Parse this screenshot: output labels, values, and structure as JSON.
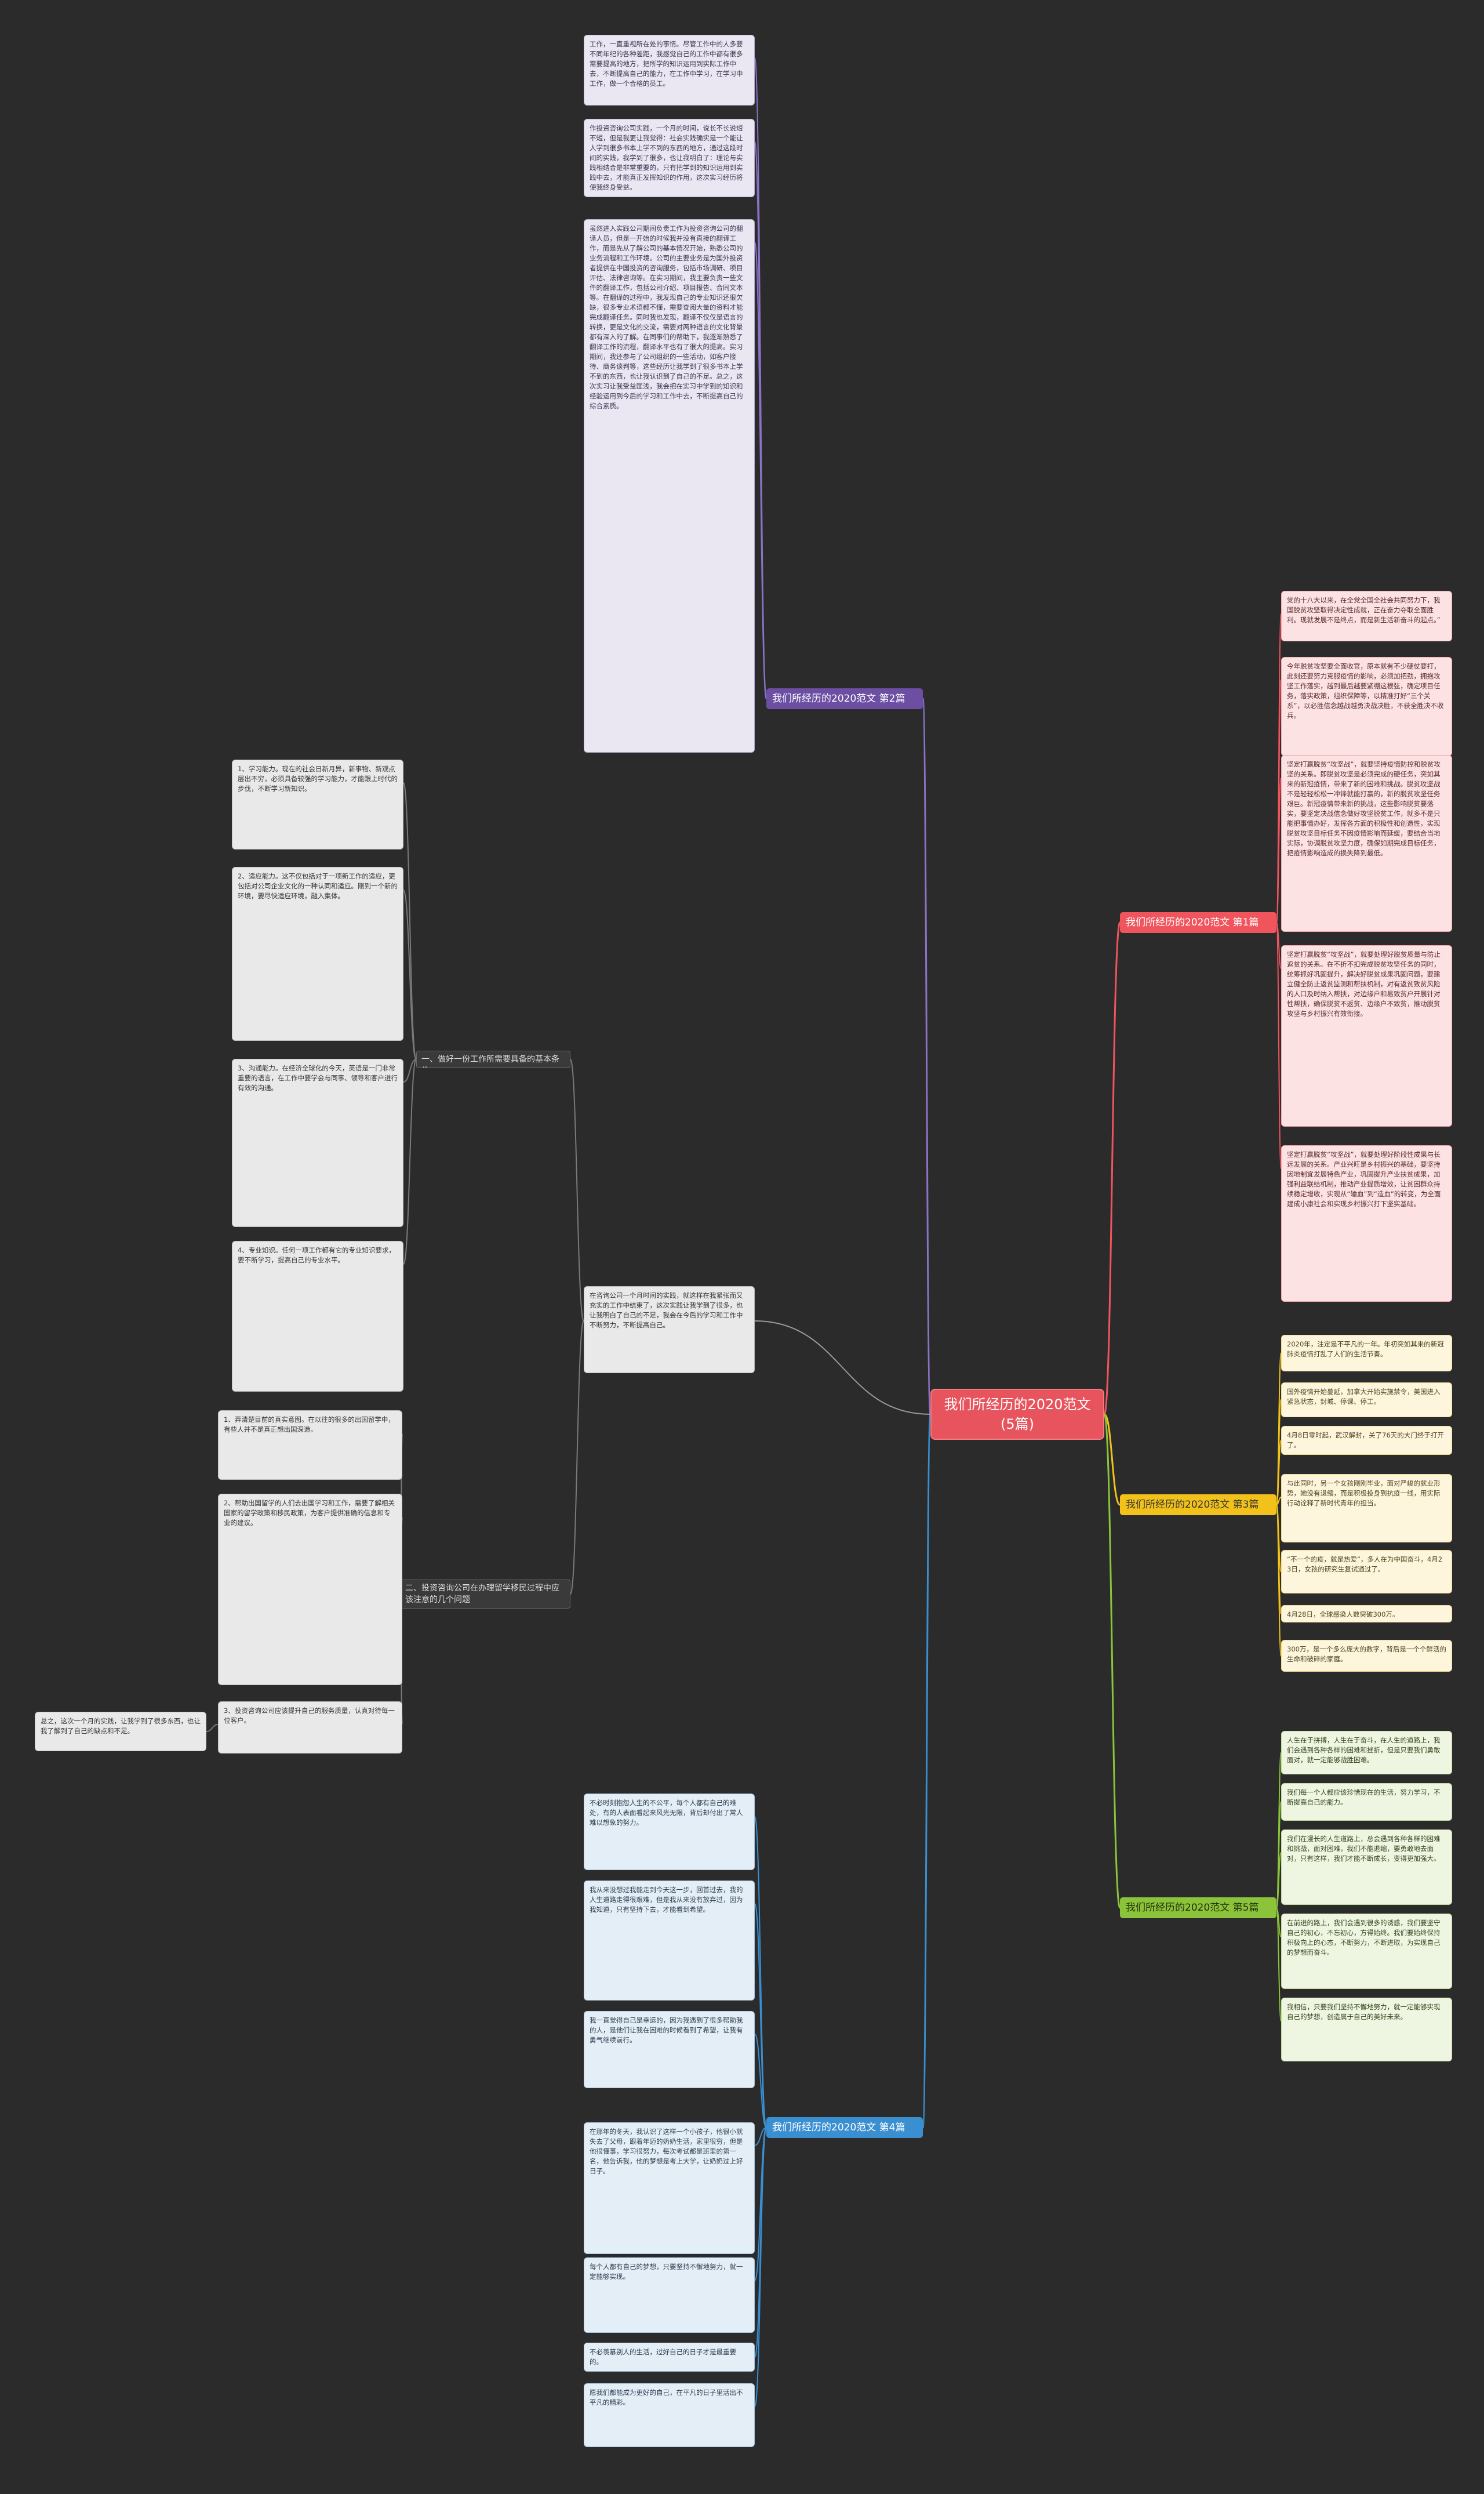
{
  "root": "我们所经历的2020范文(5篇)",
  "branches": [
    {
      "label": "我们所经历的2020范文 第1篇",
      "leaves": [
        "党的十八大以来，在全党全国全社会共同努力下，我国脱贫攻坚取得决定性成就，正在奋力夺取全面胜利。现就发展不是终点，而是新生活新奋斗的起点。”",
        "今年脱贫攻坚要全面收官，原本就有不少硬仗要打，此刻还要努力克服疫情的影响，必须加把劲，拥抱攻坚工作落实，越到最后越要紧绷这根弦，确定项目任务，落实政策，组织保障等，以精准打好“三个关系”，以必胜信念越战越勇决战决胜，不获全胜决不收兵。",
        "坚定打赢脱贫“攻坚战”，就要坚持疫情防控和脱贫攻坚的关系。即脱贫攻坚是必须完成的硬任务，突如其来的新冠疫情，带来了新的困难和挑战。脱贫攻坚战不是轻轻松松一冲锋就能打赢的，新的脱贫攻坚任务艰巨。新冠疫情带来新的挑战，这些影响脱贫要落实，要坚定决战信念做好攻坚脱贫工作，就多不是只能把事情办好，发挥各方面的积极性和创造性，实现脱贫攻坚目标任务不因疫情影响而延缓，要结合当地实际，协调脱贫攻坚力度，确保如期完成目标任务，把疫情影响造成的损失降到最低。",
        "坚定打赢脱贫“攻坚战”，就要处理好脱贫质量与防止返贫的关系。在不折不扣完成脱贫攻坚任务的同时，统筹抓好巩固提升，解决好脱贫成果巩固问题，要建立健全防止返贫监测和帮扶机制，对有返贫致贫风险的人口及时纳入帮扶，对边缘户和易致贫户开展针对性帮扶，确保脱贫不返贫、边缘户不致贫，推动脱贫攻坚与乡村振兴有效衔接。",
        "坚定打赢脱贫“攻坚战”，就要处理好阶段性成果与长远发展的关系。产业兴旺是乡村振兴的基础，要坚持因地制宜发展特色产业，巩固提升产业扶贫成果，加强利益联结机制，推动产业提质增效，让贫困群众持续稳定增收，实现从“输血”到“造血”的转变，为全面建成小康社会和实现乡村振兴打下坚实基础。"
      ]
    },
    {
      "label": "我们所经历的2020范文 第2篇",
      "leaves": [
        "工作，一直重视所在处的事情。尽管工作中的人多要不同年纪的各种差距，我感觉自己的工作中都有很多需要提高的地方，把所学的知识运用到实际工作中去，不断提高自己的能力，在工作中学习，在学习中工作，做一个合格的员工。",
        "作投资咨询公司实践，一个月的时间，说长不长说短不短，但是我更让我觉得：社会实践确实是一个能让人学到很多书本上学不到的东西的地方，通过这段时间的实践，我学到了很多，也让我明白了：理论与实践相结合是非常重要的，只有把学到的知识运用到实践中去，才能真正发挥知识的作用，这次实习经历将使我终身受益。",
        "虽然进入实践公司期间负责工作为投资咨询公司的翻译人员，但是一开始的时候我并没有直接的翻译工作，而是先从了解公司的基本情况开始，熟悉公司的业务流程和工作环境。公司的主要业务是为国外投资者提供在中国投资的咨询服务，包括市场调研、项目评估、法律咨询等。在实习期间，我主要负责一些文件的翻译工作，包括公司介绍、项目报告、合同文本等。在翻译的过程中，我发现自己的专业知识还很欠缺，很多专业术语都不懂，需要查阅大量的资料才能完成翻译任务。同时我也发现，翻译不仅仅是语言的转换，更是文化的交流，需要对两种语言的文化背景都有深入的了解。在同事们的帮助下，我逐渐熟悉了翻译工作的流程，翻译水平也有了很大的提高。实习期间，我还参与了公司组织的一些活动，如客户接待、商务谈判等，这些经历让我学到了很多书本上学不到的东西，也让我认识到了自己的不足。总之，这次实习让我受益匪浅，我会把在实习中学到的知识和经验运用到今后的学习和工作中去，不断提高自己的综合素质。"
      ]
    },
    {
      "label": "我们所经历的2020范文 第3篇",
      "leaves": [
        "2020年，注定是不平凡的一年。年初突如其来的新冠肺炎疫情打乱了人们的生活节奏。",
        "国外疫情开始蔓延，加拿大开始实施禁令，美国进入紧急状态，封城、停课、停工。",
        "4月8日零时起，武汉解封，关了76天的大门终于打开了。",
        "与此同时，另一个女孩刚刚毕业，面对严峻的就业形势，她没有退缩，而是积极投身到抗疫一线，用实际行动诠释了新时代青年的担当。",
        "“不一个的疫，就是热爱”，多人在为中国奋斗，4月23日，女孩的研究生复试通过了。",
        "4月28日，全球感染人数突破300万。",
        "300万，是一个多么庞大的数字，背后是一个个鲜活的生命和破碎的家庭。"
      ]
    },
    {
      "label": "我们所经历的2020范文 第4篇",
      "leaves": [
        "不必时刻抱怨人生的不公平，每个人都有自己的难处，有的人表面看起来风光无限，背后却付出了常人难以想象的努力。",
        "我从来没想过我能走到今天这一步，回首过去，我的人生道路走得很艰难，但是我从来没有放弃过，因为我知道，只有坚持下去，才能看到希望。",
        "我一直觉得自己是幸运的，因为我遇到了很多帮助我的人，是他们让我在困难的时候看到了希望，让我有勇气继续前行。",
        "在那年的冬天，我认识了这样一个小孩子，他很小就失去了父母，跟着年迈的奶奶生活，家里很穷，但是他很懂事，学习很努力，每次考试都是班里的第一名，他告诉我，他的梦想是考上大学，让奶奶过上好日子。",
        "每个人都有自己的梦想，只要坚持不懈地努力，就一定能够实现。",
        "不必羡慕别人的生活，过好自己的日子才是最重要的。",
        "愿我们都能成为更好的自己，在平凡的日子里活出不平凡的精彩。"
      ]
    },
    {
      "label": "我们所经历的2020范文 第5篇",
      "leaves": [
        "人生在于拼搏，人生在于奋斗，在人生的道路上，我们会遇到各种各样的困难和挫折，但是只要我们勇敢面对，就一定能够战胜困难。",
        "我们每一个人都应该珍惜现在的生活，努力学习，不断提高自己的能力。",
        "我们在漫长的人生道路上，总会遇到各种各样的困难和挑战，面对困难，我们不能退缩，要勇敢地去面对，只有这样，我们才能不断成长，变得更加强大。",
        "在前进的路上，我们会遇到很多的诱惑，我们要坚守自己的初心，不忘初心，方得始终。我们要始终保持积极向上的心态，不断努力，不断进取，为实现自己的梦想而奋斗。",
        "我相信，只要我们坚持不懈地努力，就一定能够实现自己的梦想，创造属于自己的美好未来。"
      ]
    }
  ],
  "left": {
    "main_text": "在咨询公司一个月时间的实践，就这样在我紧张而又充实的工作中结束了，这次实践让我学到了很多，也让我明白了自己的不足，我会在今后的学习和工作中不断努力，不断提高自己。",
    "subs": [
      {
        "label": "一、做好一份工作所需要具备的基本条件",
        "leaves": [
          "1、学习能力。现在的社会日新月异，新事物、新观点层出不穷，必须具备较强的学习能力，才能跟上时代的步伐，不断学习新知识。",
          "2、适应能力。这不仅包括对于一项新工作的适应，更包括对公司企业文化的一种认同和适应。刚到一个新的环境，要尽快适应环境，融入集体。",
          "3、沟通能力。在经济全球化的今天，英语是一门非常重要的语言，在工作中要学会与同事、领导和客户进行有效的沟通。",
          "4、专业知识。任何一项工作都有它的专业知识要求，要不断学习，提高自己的专业水平。"
        ]
      },
      {
        "label": "二、投资咨询公司在办理留学移民过程中应该注意的几个问题",
        "leaves": [
          "1、弄清楚目前的真实意图。在以往的很多的出国留学中，有些人并不是真正想出国深造。",
          "2、帮助出国留学的人们去出国学习和工作，需要了解相关国家的留学政策和移民政策，为客户提供准确的信息和专业的建议。",
          "3、投资咨询公司应该提升自己的服务质量，认真对待每一位客户。"
        ],
        "side": "总之，这次一个月的实践，让我学到了很多东西，也让我了解到了自己的缺点和不足。"
      }
    ]
  }
}
